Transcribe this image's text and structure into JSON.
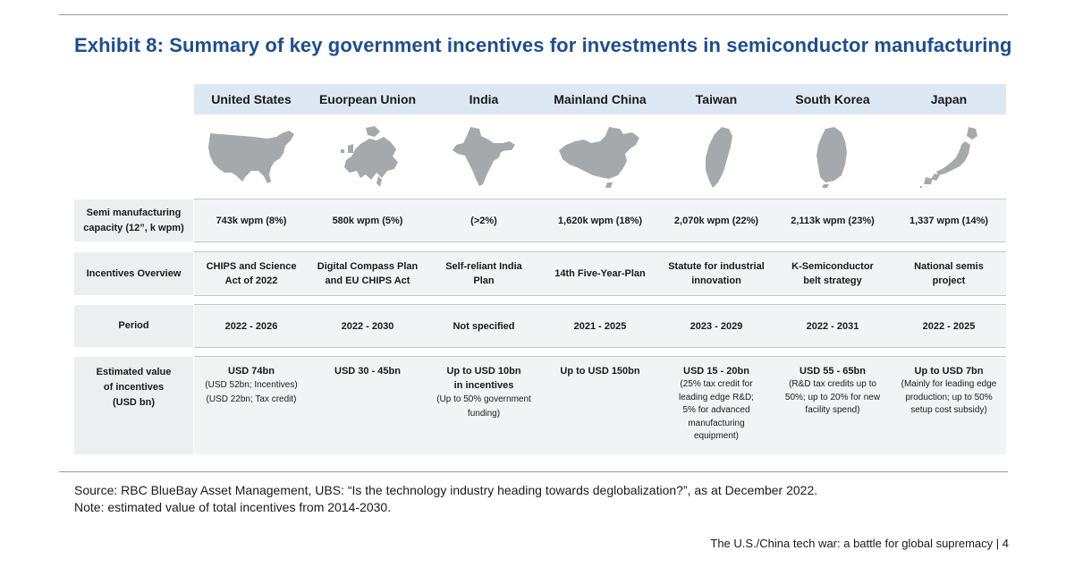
{
  "title": "Exhibit 8: Summary of key government incentives for investments in semiconductor manufacturing",
  "colors": {
    "title": "#1f4e8c",
    "header_band": "#dce8f4",
    "map_fill": "#a6a9ac",
    "label_bg": "#eceeef"
  },
  "columns": [
    {
      "name": "United States",
      "map_icon": "united-states-map-icon"
    },
    {
      "name": "Euorpean Union",
      "map_icon": "european-union-map-icon"
    },
    {
      "name": "India",
      "map_icon": "india-map-icon"
    },
    {
      "name": "Mainland China",
      "map_icon": "china-map-icon"
    },
    {
      "name": "Taiwan",
      "map_icon": "taiwan-map-icon"
    },
    {
      "name": "South Korea",
      "map_icon": "south-korea-map-icon"
    },
    {
      "name": "Japan",
      "map_icon": "japan-map-icon"
    }
  ],
  "rows": {
    "capacity": {
      "label_line1": "Semi manufacturing",
      "label_line2": "capacity (12”, k wpm)",
      "values": [
        "743k wpm (8%)",
        "580k wpm (5%)",
        "(>2%)",
        "1,620k wpm (18%)",
        "2,070k wpm (22%)",
        "2,113k wpm (23%)",
        "1,337 wpm (14%)"
      ]
    },
    "overview": {
      "label": "Incentives Overview",
      "values": [
        [
          "CHIPS and Science",
          "Act of 2022"
        ],
        [
          "Digital Compass Plan",
          "and EU CHIPS Act"
        ],
        [
          "Self-reliant India",
          "Plan"
        ],
        [
          "14th Five-Year-Plan"
        ],
        [
          "Statute for industrial",
          "innovation"
        ],
        [
          "K-Semiconductor",
          "belt strategy"
        ],
        [
          "National semis",
          "project"
        ]
      ]
    },
    "period": {
      "label": "Period",
      "values": [
        "2022 - 2026",
        "2022 - 2030",
        "Not specified",
        "2021 - 2025",
        "2023 - 2029",
        "2022 - 2031",
        "2022 - 2025"
      ]
    },
    "estimated": {
      "label_line1": "Estimated value",
      "label_line2": "of incentives",
      "label_line3": "(USD bn)",
      "us": {
        "main": "USD 74bn",
        "sub1": "(USD 52bn; Incentives)",
        "sub2": "(USD 22bn; Tax credit)"
      },
      "eu": {
        "main": "USD 30 - 45bn"
      },
      "india": {
        "main1": "Up to USD 10bn",
        "main2": "in incentives",
        "sub1": "(Up to 50% government",
        "sub2": "funding)"
      },
      "china": {
        "main": "Up to USD 150bn"
      },
      "taiwan": {
        "main": "USD 15 - 20bn",
        "sub1": "(25% tax credit for",
        "sub2": "leading edge R&D;",
        "sub3": "5% for advanced",
        "sub4": "manufacturing",
        "sub5": "equipment)"
      },
      "korea": {
        "main": "USD 55 - 65bn",
        "sub1": "(R&D tax credits up to",
        "sub2": "50%; up to 20% for new",
        "sub3": "facility spend)"
      },
      "japan": {
        "main": "Up to USD 7bn",
        "sub1": "(Mainly for leading edge",
        "sub2": "production; up to 50%",
        "sub3": "setup cost subsidy)"
      }
    }
  },
  "source_line": "Source: RBC BlueBay Asset Management, UBS: “Is the technology industry heading towards deglobalization?”, as at December 2022.",
  "note_line": "Note: estimated value of total incentives from 2014-2030.",
  "footer": "The U.S./China tech war: a battle for global supremacy | 4"
}
